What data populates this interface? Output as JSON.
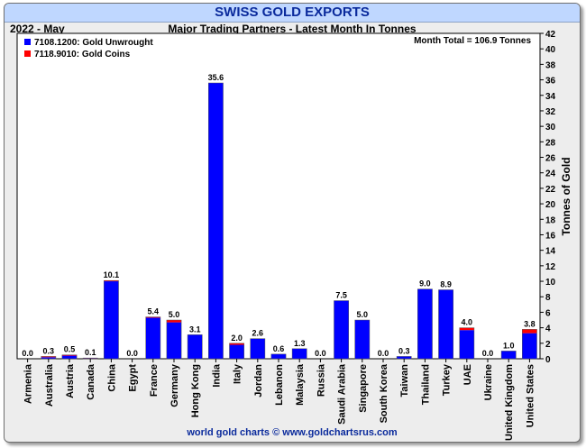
{
  "header": {
    "title": "SWISS GOLD EXPORTS",
    "period": "2022 - May",
    "subtitle": "Major Trading Partners - Latest Month In Tonnes"
  },
  "footer": {
    "credit": "world gold charts © www.goldchartsrus.com"
  },
  "colors": {
    "unwrought": "#0000ff",
    "coins": "#ff0000",
    "background": "#ededed",
    "title_bar": "#bfd7ff"
  },
  "chart_data": {
    "type": "bar",
    "stacked": true,
    "annotation": "Month Total = 106.9 Tonnes",
    "ylabel": "Tonnes of Gold",
    "xlabel": "",
    "ylim": [
      0,
      42
    ],
    "yticks": [
      0,
      2,
      4,
      6,
      8,
      10,
      12,
      14,
      16,
      18,
      20,
      22,
      24,
      26,
      28,
      30,
      32,
      34,
      36,
      38,
      40,
      42
    ],
    "y_axis_side": "right",
    "grid": false,
    "legend_position": "top-left",
    "categories": [
      "Armenia",
      "Australia",
      "Austria",
      "Canada",
      "China",
      "Egypt",
      "France",
      "Germany",
      "Hong Kong",
      "India",
      "Italy",
      "Jordan",
      "Lebanon",
      "Malaysia",
      "Russia",
      "Saudi Arabia",
      "Singapore",
      "South Korea",
      "Taiwan",
      "Thailand",
      "Turkey",
      "UAE",
      "Ukraine",
      "United Kingdom",
      "United States"
    ],
    "totals": [
      "0.0",
      "0.3",
      "0.5",
      "0.1",
      "10.1",
      "0.0",
      "5.4",
      "5.0",
      "3.1",
      "35.6",
      "2.0",
      "2.6",
      "0.6",
      "1.3",
      "0.0",
      "7.5",
      "5.0",
      "0.0",
      "0.3",
      "9.0",
      "8.9",
      "4.0",
      "0.0",
      "1.0",
      "3.8"
    ],
    "series": [
      {
        "name": "7108.1200: Gold Unwrought",
        "color": "#0000ff",
        "values": [
          0.0,
          0.2,
          0.4,
          0.05,
          10.0,
          0.0,
          5.3,
          4.7,
          3.1,
          35.6,
          1.8,
          2.6,
          0.6,
          1.3,
          0.0,
          7.5,
          5.0,
          0.0,
          0.3,
          9.0,
          8.9,
          3.7,
          0.0,
          1.0,
          3.3
        ]
      },
      {
        "name": "7118.9010: Gold Coins",
        "color": "#ff0000",
        "values": [
          0.0,
          0.1,
          0.1,
          0.05,
          0.1,
          0.0,
          0.1,
          0.3,
          0.0,
          0.0,
          0.2,
          0.0,
          0.0,
          0.0,
          0.0,
          0.0,
          0.0,
          0.0,
          0.0,
          0.0,
          0.0,
          0.3,
          0.0,
          0.0,
          0.5
        ]
      }
    ]
  }
}
